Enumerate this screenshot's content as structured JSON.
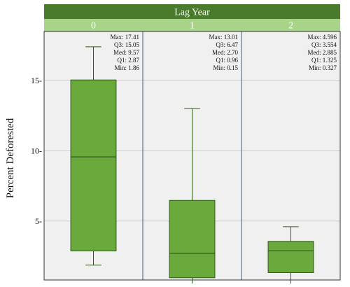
{
  "chart_data": {
    "type": "box",
    "facet_title": "Lag Year",
    "ylabel": "Percent Deforested",
    "ylim": [
      0.8,
      18.5
    ],
    "yticks": [
      5,
      10,
      15
    ],
    "ytick_labels": [
      "5-",
      "10-",
      "15-"
    ],
    "grid": true,
    "panels": [
      {
        "label": "0",
        "max": 17.41,
        "q3": 15.05,
        "med": 9.57,
        "q1": 2.87,
        "min": 1.86,
        "stats_text": [
          "Max: 17.41",
          "Q3: 15.05",
          "Med: 9.57",
          "Q1: 2.87",
          "Min: 1.86"
        ]
      },
      {
        "label": "1",
        "max": 13.01,
        "q3": 6.47,
        "med": 2.7,
        "q1": 0.96,
        "min": 0.15,
        "stats_text": [
          "Max: 13.01",
          "Q3: 6.47",
          "Med: 2.70",
          "Q1: 0.96",
          "Min: 0.15"
        ]
      },
      {
        "label": "2",
        "max": 4.596,
        "q3": 3.554,
        "med": 2.885,
        "q1": 1.325,
        "min": 0.327,
        "stats_text": [
          "Max: 4.596",
          "Q3: 3.554",
          "Med: 2.885",
          "Q1: 1.325",
          "Min: 0.327"
        ]
      }
    ]
  },
  "colors": {
    "header_dark": "#4a7a2c",
    "header_light": "#a8d48a",
    "box_fill": "#6aaa3c",
    "box_stroke": "#2f5a18",
    "panel_bg": "#f0f0f0",
    "grid": "#cccccc",
    "panel_border": "#4a5a80"
  }
}
